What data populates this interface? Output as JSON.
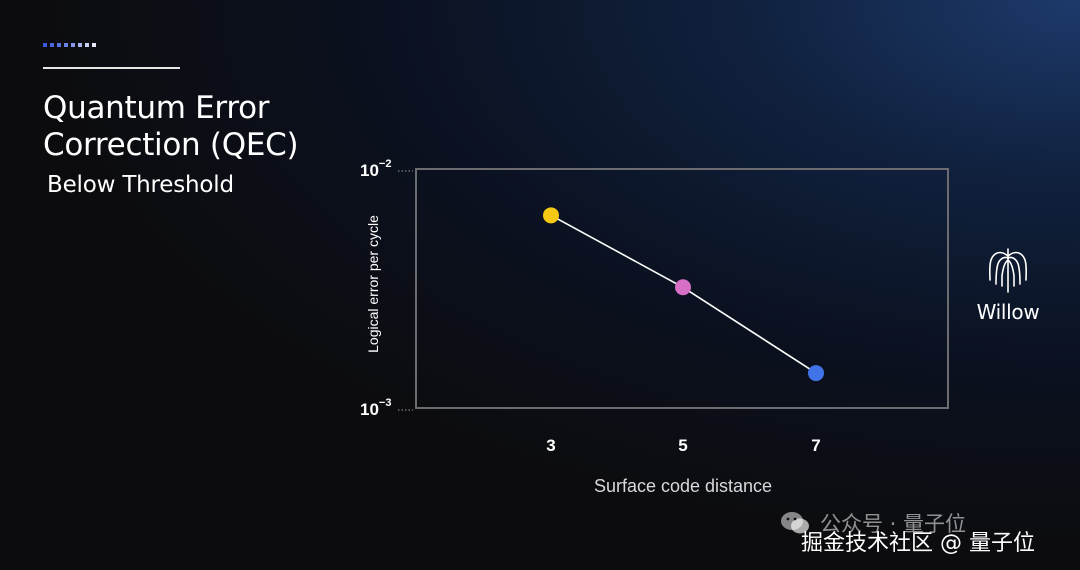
{
  "page": {
    "title_line1": "Quantum Error",
    "title_line2": "Correction (QEC)",
    "subtitle": "Below Threshold",
    "logo_text": "Willow",
    "watermark_top": "公众号 · 量子位",
    "watermark_bottom": "掘金技术社区 @ 量子位",
    "colors": {
      "dots": [
        "#3c5bd8",
        "#4a67dc",
        "#5873e0",
        "#6a82e4",
        "#8898e8",
        "#a8b4ee",
        "#c9d0f4",
        "#e6e9f9"
      ]
    }
  },
  "chart_data": {
    "type": "line",
    "xlabel": "Surface code distance",
    "ylabel": "Logical error per cycle",
    "x": [
      3,
      5,
      7
    ],
    "x_tick_labels": [
      "3",
      "5",
      "7"
    ],
    "y": [
      0.0064,
      0.0032,
      0.0014
    ],
    "y_scale": "log",
    "ylim": [
      0.001,
      0.01
    ],
    "y_tick_labels": [
      {
        "base": "10",
        "exp": "−2"
      },
      {
        "base": "10",
        "exp": "−3"
      }
    ],
    "point_colors": [
      "#f6c914",
      "#d66fc6",
      "#3f73e6"
    ],
    "line_color": "#ffffff",
    "grid": false
  }
}
